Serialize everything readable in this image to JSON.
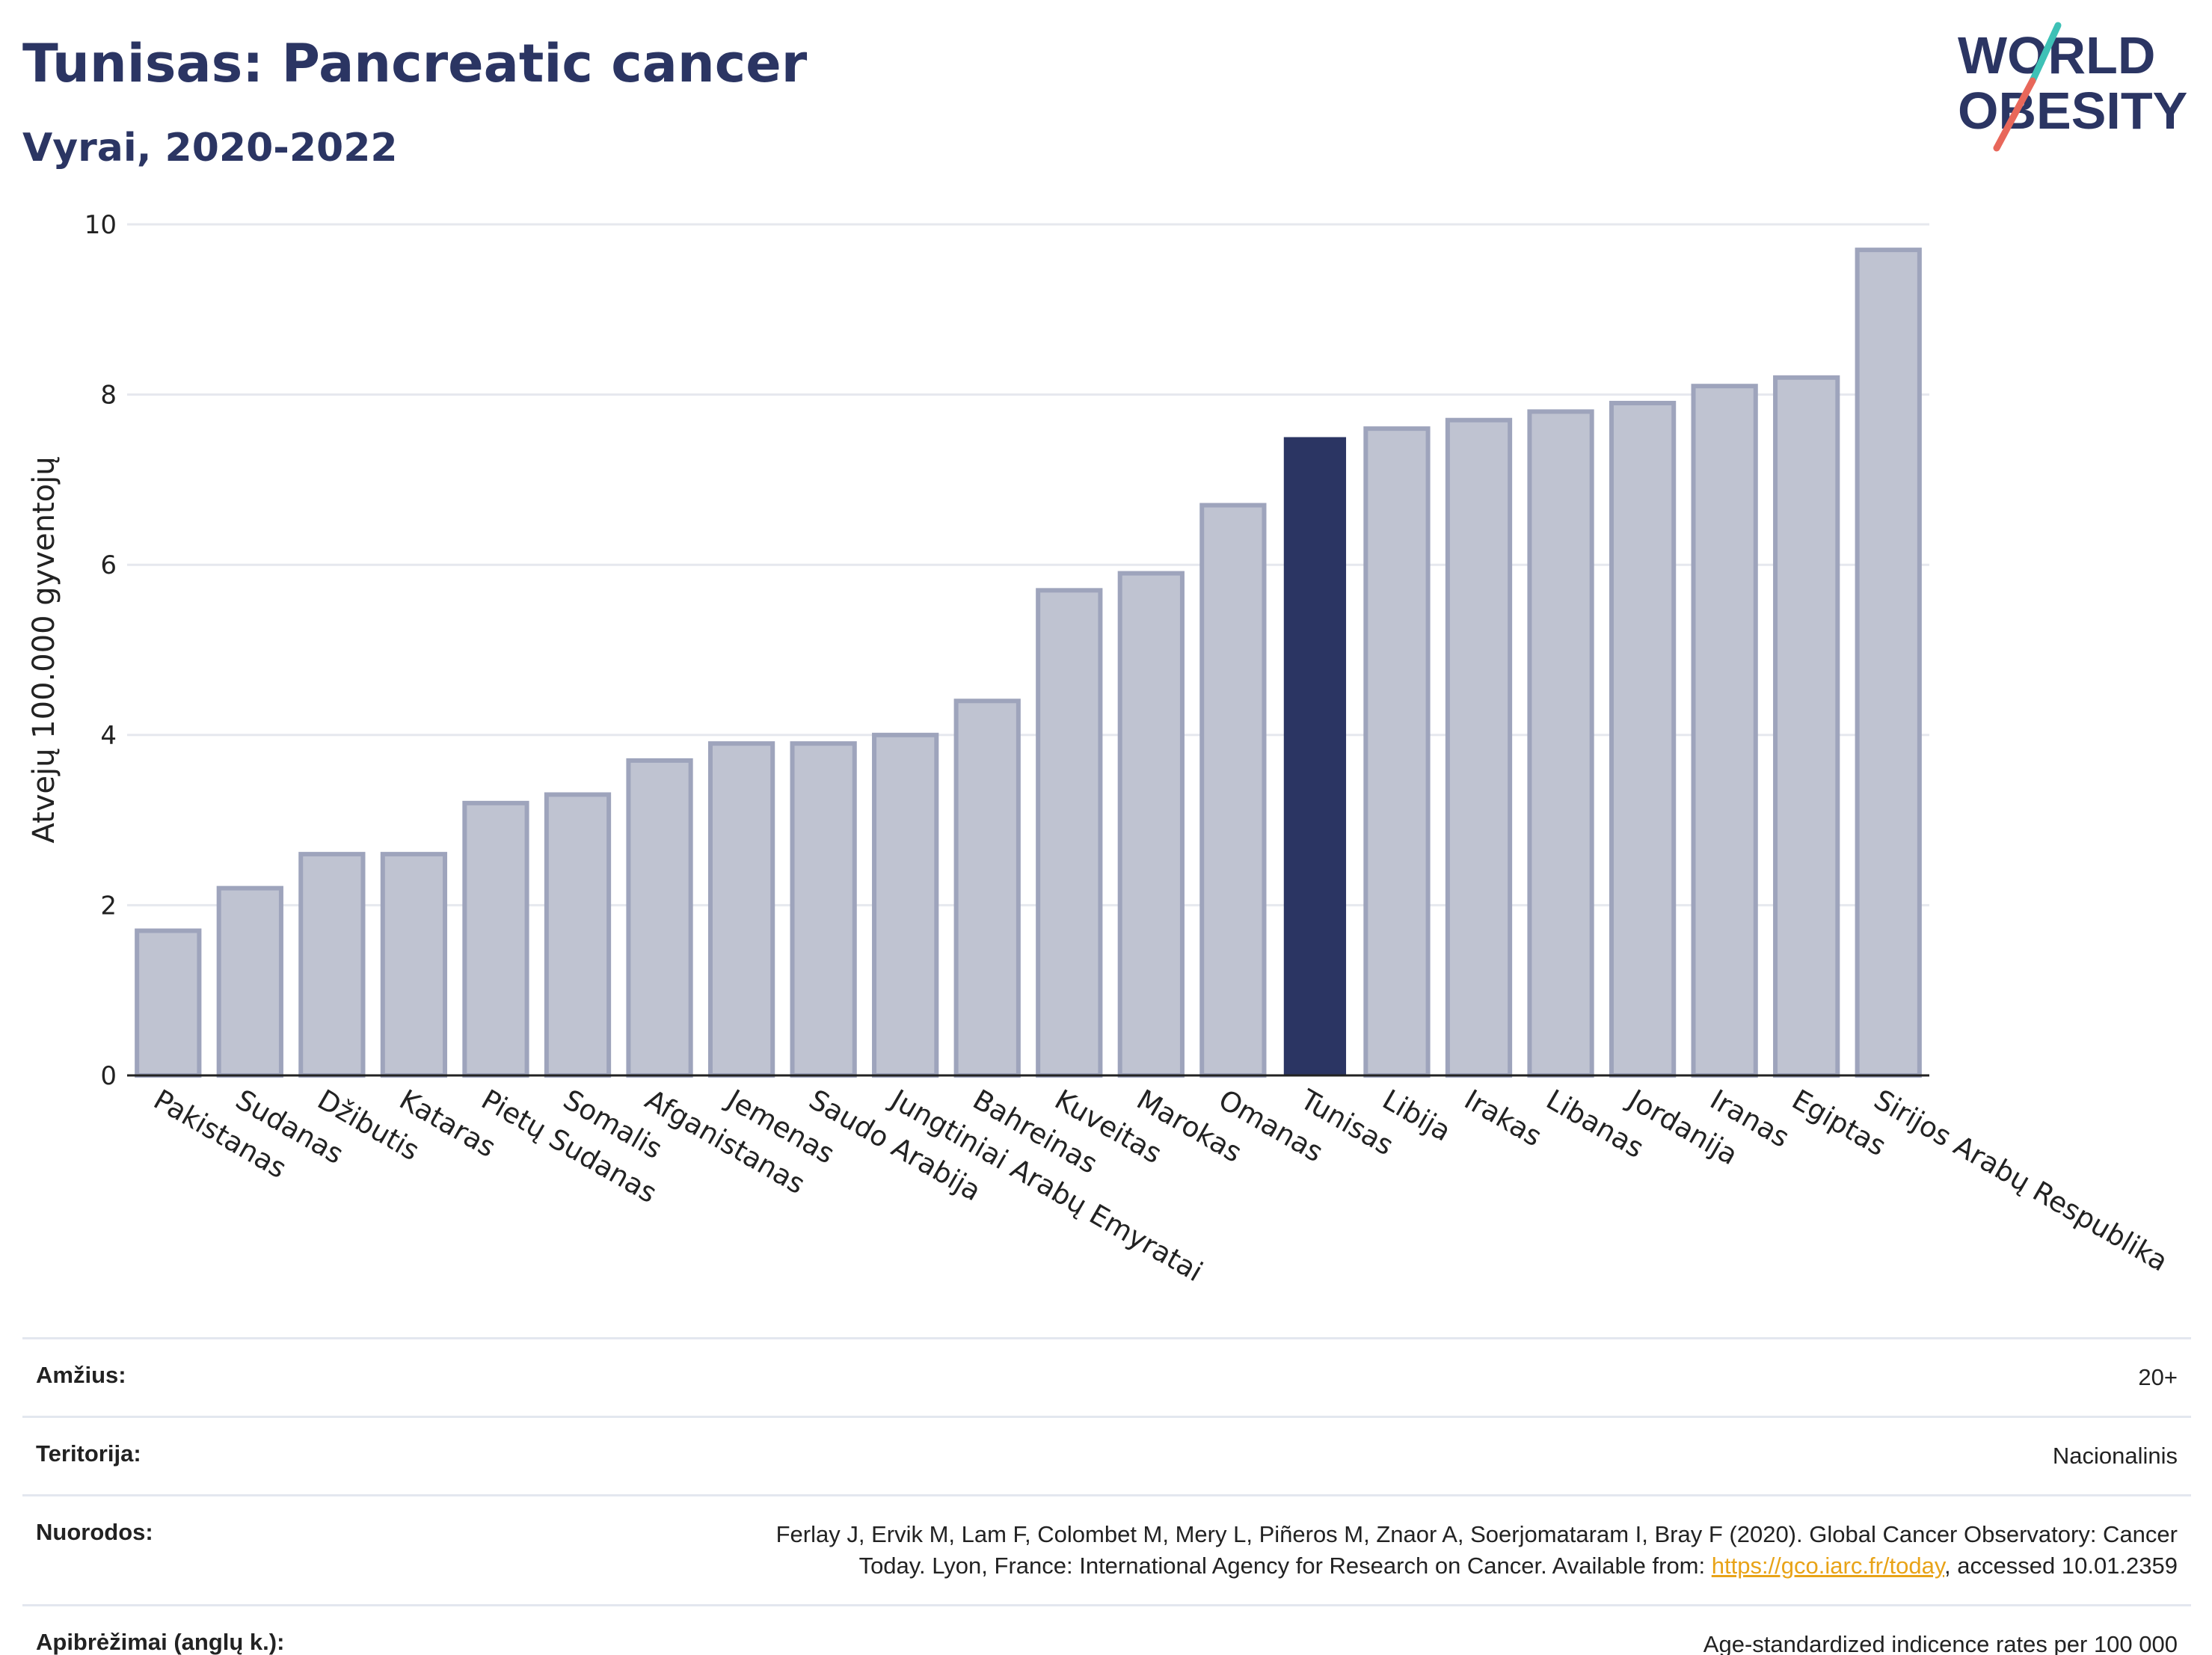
{
  "header": {
    "title": "Tunisas: Pancreatic cancer",
    "subtitle": "Vyrai, 2020-2022"
  },
  "logo": {
    "line1": "WORLD",
    "line2": "OBESITY",
    "colors": {
      "navy": "#2b3563",
      "teal": "#3ec1b6",
      "coral": "#e8675a"
    }
  },
  "colors": {
    "bar_fill": "#bfc3d1",
    "bar_stroke": "#9ea4bc",
    "highlight": "#2b3563",
    "grid": "#e6e8ee",
    "axis": "#222222"
  },
  "chart_data": {
    "type": "bar",
    "title": "Tunisas: Pancreatic cancer",
    "subtitle": "Vyrai, 2020-2022",
    "xlabel": "",
    "ylabel": "Atvejų 100.000 gyventojų",
    "ylim": [
      0,
      10
    ],
    "yticks": [
      0,
      2,
      4,
      6,
      8,
      10
    ],
    "grid": true,
    "highlight_category": "Tunisas",
    "categories": [
      "Pakistanas",
      "Sudanas",
      "Džibutis",
      "Kataras",
      "Pietų Sudanas",
      "Somalis",
      "Afganistanas",
      "Jemenas",
      "Saudo Arabija",
      "Jungtiniai Arabų Emyratai",
      "Bahreinas",
      "Kuveitas",
      "Marokas",
      "Omanas",
      "Tunisas",
      "Libija",
      "Irakas",
      "Libanas",
      "Jordanija",
      "Iranas",
      "Egiptas",
      "Sirijos Arabų Respublika"
    ],
    "values": [
      1.7,
      2.2,
      2.6,
      2.6,
      3.2,
      3.3,
      3.7,
      3.9,
      3.9,
      4.0,
      4.4,
      5.7,
      5.9,
      6.7,
      7.5,
      7.6,
      7.7,
      7.8,
      7.9,
      8.1,
      8.2,
      9.7
    ]
  },
  "meta": {
    "age": {
      "label": "Amžius:",
      "value": "20+"
    },
    "territory": {
      "label": "Teritorija:",
      "value": "Nacionalinis"
    },
    "references": {
      "label": "Nuorodos:",
      "text_line1": "Ferlay J, Ervik M, Lam F, Colombet M, Mery L, Piñeros M, Znaor A, Soerjomataram I, Bray F (2020). Global Cancer Observatory: Cancer",
      "text_line2_prefix": "Today. Lyon, France: International Agency for Research on Cancer. Available from: ",
      "link": "https://gco.iarc.fr/today",
      "text_line2_suffix": ", accessed 10.01.2359"
    },
    "definitions": {
      "label": "Apibrėžimai (anglų k.):",
      "value": "Age-standardized indicence rates per 100 000"
    }
  }
}
